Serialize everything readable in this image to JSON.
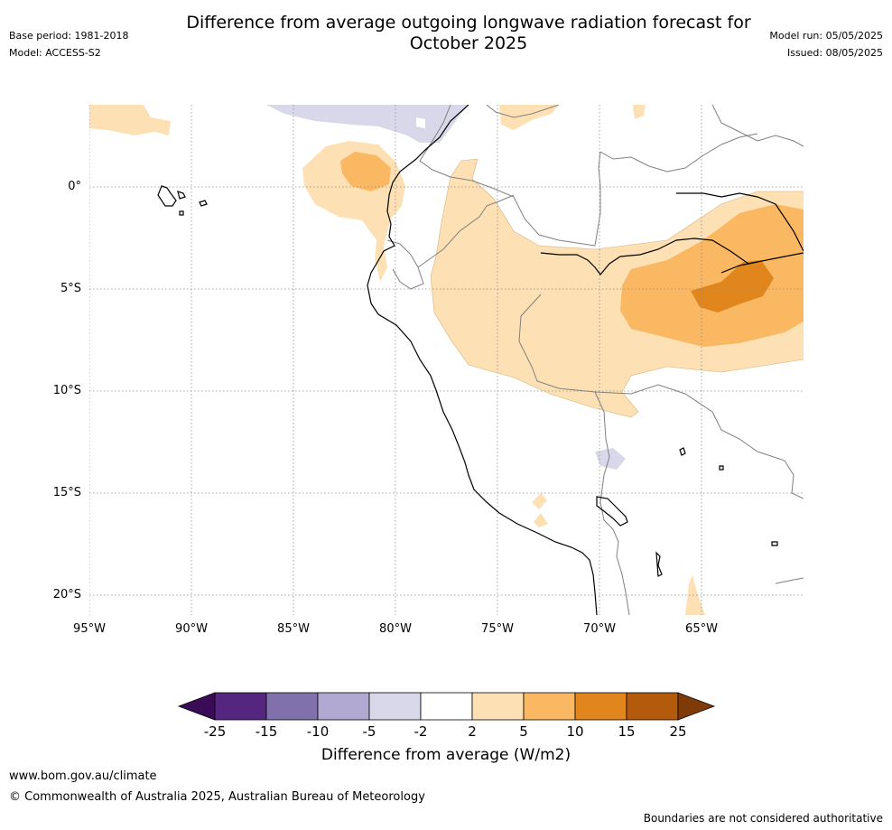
{
  "header": {
    "title_line1": "Difference from average outgoing longwave radiation forecast for",
    "title_line2": "October 2025",
    "base_period": "Base period: 1981-2018",
    "model": "Model: ACCESS-S2",
    "model_run": "Model run: 05/05/2025",
    "issued": "Issued: 08/05/2025"
  },
  "map": {
    "lat_labels": [
      "0°",
      "5°S",
      "10°S",
      "15°S",
      "20°S"
    ],
    "lon_labels": [
      "95°W",
      "90°W",
      "85°W",
      "80°W",
      "75°W",
      "70°W",
      "65°W"
    ],
    "colors": {
      "light_orange": "#fde0b4",
      "orange": "#fbb863",
      "dark_orange": "#e0861d",
      "light_purple": "#d8d8ea",
      "coast": "#000000",
      "border": "#808080",
      "grid": "#8c8c8c"
    }
  },
  "colorbar": {
    "tick_labels": [
      "-25",
      "-15",
      "-10",
      "-5",
      "-2",
      "2",
      "5",
      "10",
      "15",
      "25"
    ],
    "colors": [
      "#3a0c57",
      "#54267f",
      "#8071ac",
      "#b1a9d2",
      "#d8d8ea",
      "#ffffff",
      "#fde0b4",
      "#fbb863",
      "#e0861d",
      "#b35a0c",
      "#7e3b08"
    ],
    "label": "Difference from average (W/m2)"
  },
  "footer": {
    "website": "www.bom.gov.au/climate",
    "copyright": "© Commonwealth of Australia 2025, Australian Bureau of Meteorology",
    "disclaimer": "Boundaries are not considered authoritative"
  }
}
